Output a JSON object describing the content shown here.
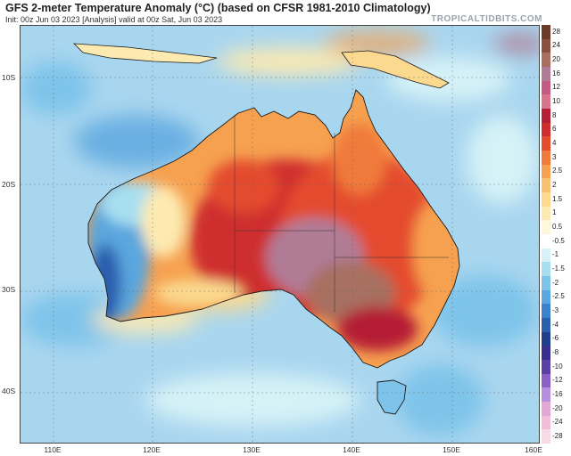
{
  "header": {
    "title": "GFS 2-meter Temperature Anomaly (°C) (based on CFSR 1981-2010 Climatology)",
    "subtitle": "Init: 00z Jun 03 2023   [Analysis]   valid at 00z Sat, Jun 03 2023",
    "brand": "TROPICALTIDBITS.COM"
  },
  "map": {
    "region": "Australia",
    "lat_labels": [
      "10S",
      "20S",
      "30S",
      "40S"
    ],
    "lon_labels": [
      "110E",
      "120E",
      "130E",
      "140E",
      "150E",
      "160E"
    ],
    "ocean_color": "#a9d6ef",
    "land_outline_color": "#1a1a1a"
  },
  "colorbar": {
    "levels": [
      {
        "label": "28",
        "color": "#6b3a2a"
      },
      {
        "label": "24",
        "color": "#8a4f3e"
      },
      {
        "label": "20",
        "color": "#a86f61"
      },
      {
        "label": "16",
        "color": "#b07c95"
      },
      {
        "label": "12",
        "color": "#c45b85"
      },
      {
        "label": "10",
        "color": "#d8748d"
      },
      {
        "label": "8",
        "color": "#b51f36"
      },
      {
        "label": "6",
        "color": "#cf2d2d"
      },
      {
        "label": "4",
        "color": "#e44b2d"
      },
      {
        "label": "3",
        "color": "#f07a3a"
      },
      {
        "label": "2.5",
        "color": "#f6a150"
      },
      {
        "label": "2",
        "color": "#f9c070"
      },
      {
        "label": "1.5",
        "color": "#fbd98f"
      },
      {
        "label": "1",
        "color": "#fdeab0"
      },
      {
        "label": "0.5",
        "color": "#fff7dc"
      },
      {
        "label": "-0.5",
        "color": "#ffffff"
      },
      {
        "label": "-1",
        "color": "#d6f2f7"
      },
      {
        "label": "-1.5",
        "color": "#a8dff0"
      },
      {
        "label": "-2",
        "color": "#7ec4ea"
      },
      {
        "label": "-2.5",
        "color": "#5aa6de"
      },
      {
        "label": "-3",
        "color": "#3b82cc"
      },
      {
        "label": "-4",
        "color": "#2a5fae"
      },
      {
        "label": "-6",
        "color": "#203f8a"
      },
      {
        "label": "-8",
        "color": "#3a2f8f"
      },
      {
        "label": "-10",
        "color": "#5b3fa5"
      },
      {
        "label": "-12",
        "color": "#8c5fc5"
      },
      {
        "label": "-16",
        "color": "#b58fdd"
      },
      {
        "label": "-20",
        "color": "#e3a7d7"
      },
      {
        "label": "-24",
        "color": "#f0bfd7"
      },
      {
        "label": "-28",
        "color": "#f7dae6"
      }
    ]
  }
}
